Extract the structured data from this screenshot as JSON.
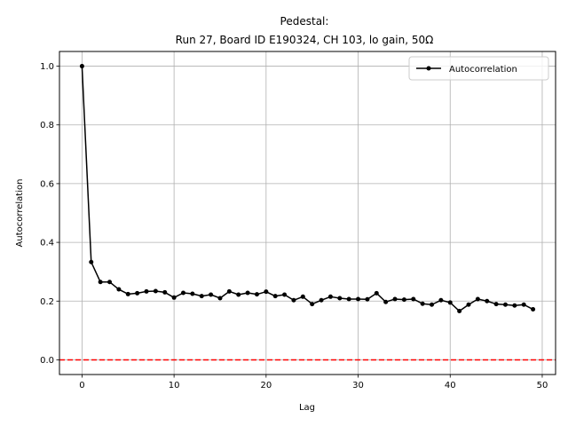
{
  "chart_data": {
    "type": "line",
    "title_line1": "Pedestal:",
    "title_line2": "Run 27, Board ID E190324, CH 103, lo gain, 50Ω",
    "xlabel": "Lag",
    "ylabel": "Autocorrelation",
    "xlim": [
      -2.45,
      51.45
    ],
    "ylim": [
      -0.05,
      1.05
    ],
    "xticks": [
      0,
      10,
      20,
      30,
      40,
      50
    ],
    "yticks": [
      0.0,
      0.2,
      0.4,
      0.6,
      0.8,
      1.0
    ],
    "xtick_labels": [
      "0",
      "10",
      "20",
      "30",
      "40",
      "50"
    ],
    "ytick_labels": [
      "0.0",
      "0.2",
      "0.4",
      "0.6",
      "0.8",
      "1.0"
    ],
    "grid": true,
    "legend_position": "top-right",
    "reference_line": {
      "y": 0.0,
      "color": "#ff0000",
      "style": "dashed"
    },
    "series": [
      {
        "name": "Autocorrelation",
        "color": "#000000",
        "marker": "dot",
        "x": [
          0,
          1,
          2,
          3,
          4,
          5,
          6,
          7,
          8,
          9,
          10,
          11,
          12,
          13,
          14,
          15,
          16,
          17,
          18,
          19,
          20,
          21,
          22,
          23,
          24,
          25,
          26,
          27,
          28,
          29,
          30,
          31,
          32,
          33,
          34,
          35,
          36,
          37,
          38,
          39,
          40,
          41,
          42,
          43,
          44,
          45,
          46,
          47,
          48,
          49
        ],
        "y": [
          1.0,
          0.333,
          0.265,
          0.265,
          0.24,
          0.224,
          0.227,
          0.233,
          0.234,
          0.23,
          0.212,
          0.228,
          0.225,
          0.217,
          0.222,
          0.21,
          0.233,
          0.222,
          0.228,
          0.223,
          0.232,
          0.217,
          0.222,
          0.203,
          0.215,
          0.19,
          0.203,
          0.215,
          0.21,
          0.207,
          0.207,
          0.206,
          0.227,
          0.197,
          0.207,
          0.205,
          0.207,
          0.191,
          0.188,
          0.203,
          0.195,
          0.166,
          0.188,
          0.207,
          0.2,
          0.19,
          0.188,
          0.185,
          0.188,
          0.172
        ]
      }
    ]
  }
}
